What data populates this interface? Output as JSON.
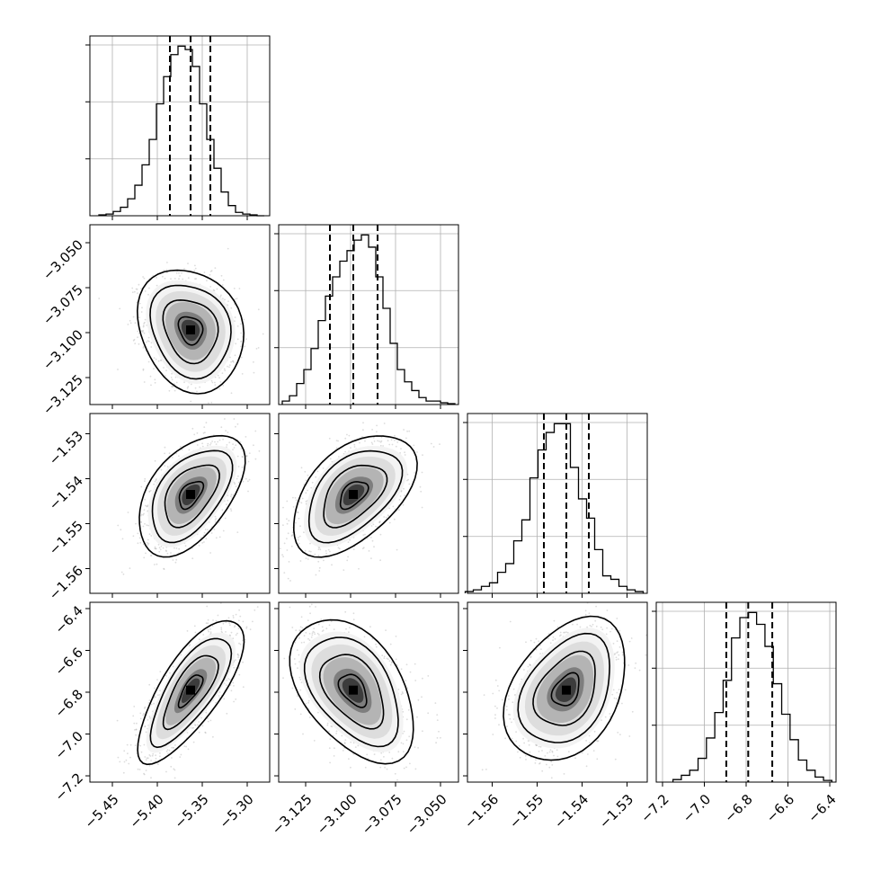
{
  "chart_data": {
    "type": "corner",
    "grid": true,
    "parameters": [
      {
        "range": [
          -5.475,
          -5.275
        ],
        "ticks": [
          -5.45,
          -5.4,
          -5.35,
          -5.3
        ],
        "tick_labels": [
          "−5.45",
          "−5.40",
          "−5.35",
          "−5.30"
        ]
      },
      {
        "range": [
          -3.14,
          -3.04
        ],
        "ticks": [
          -3.125,
          -3.1,
          -3.075,
          -3.05
        ],
        "tick_labels": [
          "−3.125",
          "−3.100",
          "−3.075",
          "−3.050"
        ]
      },
      {
        "range": [
          -1.5655,
          -1.5255
        ],
        "ticks": [
          -1.56,
          -1.55,
          -1.54,
          -1.53
        ],
        "tick_labels": [
          "−1.56",
          "−1.55",
          "−1.54",
          "−1.53"
        ]
      },
      {
        "range": [
          -7.23,
          -6.37
        ],
        "ticks": [
          -7.2,
          -7.0,
          -6.8,
          -6.6,
          -6.4
        ],
        "tick_labels": [
          "−7.2",
          "−7.0",
          "−6.8",
          "−6.6",
          "−6.4"
        ]
      }
    ],
    "marginals": [
      {
        "quantiles": [
          -5.386,
          -5.363,
          -5.341
        ],
        "bins": [
          -5.465,
          -5.457,
          -5.449,
          -5.441,
          -5.433,
          -5.425,
          -5.417,
          -5.409,
          -5.401,
          -5.393,
          -5.385,
          -5.377,
          -5.369,
          -5.361,
          -5.353,
          -5.345,
          -5.337,
          -5.329,
          -5.321,
          -5.313,
          -5.305,
          -5.297,
          -5.289,
          -5.281
        ],
        "counts": [
          0.005,
          0.01,
          0.025,
          0.05,
          0.1,
          0.18,
          0.3,
          0.45,
          0.66,
          0.82,
          0.95,
          1.0,
          0.98,
          0.88,
          0.66,
          0.45,
          0.28,
          0.14,
          0.06,
          0.02,
          0.01,
          0.005,
          0.0
        ]
      },
      {
        "quantiles": [
          -3.1115,
          -3.0985,
          -3.085
        ],
        "bins": [
          -3.138,
          -3.134,
          -3.13,
          -3.126,
          -3.122,
          -3.118,
          -3.114,
          -3.11,
          -3.106,
          -3.102,
          -3.098,
          -3.094,
          -3.09,
          -3.086,
          -3.082,
          -3.078,
          -3.074,
          -3.07,
          -3.066,
          -3.062,
          -3.058,
          -3.054,
          -3.05,
          -3.046,
          -3.042
        ],
        "counts": [
          0.02,
          0.05,
          0.12,
          0.2,
          0.32,
          0.48,
          0.62,
          0.73,
          0.82,
          0.88,
          0.94,
          0.97,
          0.9,
          0.73,
          0.55,
          0.35,
          0.2,
          0.13,
          0.08,
          0.04,
          0.02,
          0.02,
          0.01,
          0.005
        ]
      },
      {
        "quantiles": [
          -1.5485,
          -1.5435,
          -1.5385
        ],
        "bins": [
          -1.566,
          -1.5642,
          -1.5624,
          -1.5606,
          -1.5588,
          -1.557,
          -1.5552,
          -1.5534,
          -1.5516,
          -1.5498,
          -1.548,
          -1.5462,
          -1.5444,
          -1.5426,
          -1.5408,
          -1.539,
          -1.5372,
          -1.5354,
          -1.5336,
          -1.5318,
          -1.53,
          -1.5282,
          -1.5264
        ],
        "counts": [
          0.01,
          0.02,
          0.04,
          0.06,
          0.12,
          0.17,
          0.3,
          0.42,
          0.66,
          0.82,
          0.92,
          0.97,
          0.97,
          0.72,
          0.54,
          0.43,
          0.25,
          0.1,
          0.08,
          0.04,
          0.02,
          0.01
        ]
      },
      {
        "quantiles": [
          -6.895,
          -6.79,
          -6.675
        ],
        "bins": [
          -7.15,
          -7.11,
          -7.07,
          -7.03,
          -6.99,
          -6.95,
          -6.91,
          -6.87,
          -6.83,
          -6.79,
          -6.75,
          -6.71,
          -6.67,
          -6.63,
          -6.59,
          -6.55,
          -6.51,
          -6.47,
          -6.43,
          -6.39
        ],
        "counts": [
          0.015,
          0.04,
          0.07,
          0.14,
          0.26,
          0.41,
          0.6,
          0.85,
          0.97,
          1.0,
          0.93,
          0.8,
          0.58,
          0.4,
          0.25,
          0.13,
          0.07,
          0.03,
          0.01
        ]
      }
    ],
    "pairs": [
      {
        "x": 0,
        "y": 1,
        "mean": [
          -5.363,
          -3.0985
        ],
        "sd": [
          0.024,
          0.014
        ],
        "corr": -0.18
      },
      {
        "x": 0,
        "y": 2,
        "mean": [
          -5.363,
          -1.5435
        ],
        "sd": [
          0.024,
          0.0055
        ],
        "corr": 0.5
      },
      {
        "x": 1,
        "y": 2,
        "mean": [
          -3.0985,
          -1.5435
        ],
        "sd": [
          0.014,
          0.0055
        ],
        "corr": 0.5
      },
      {
        "x": 0,
        "y": 3,
        "mean": [
          -5.363,
          -6.79
        ],
        "sd": [
          0.024,
          0.14
        ],
        "corr": 0.75
      },
      {
        "x": 1,
        "y": 3,
        "mean": [
          -3.0985,
          -6.79
        ],
        "sd": [
          0.014,
          0.14
        ],
        "corr": -0.45
      },
      {
        "x": 2,
        "y": 3,
        "mean": [
          -1.5435,
          -6.79
        ],
        "sd": [
          0.0055,
          0.14
        ],
        "corr": 0.35
      }
    ]
  }
}
